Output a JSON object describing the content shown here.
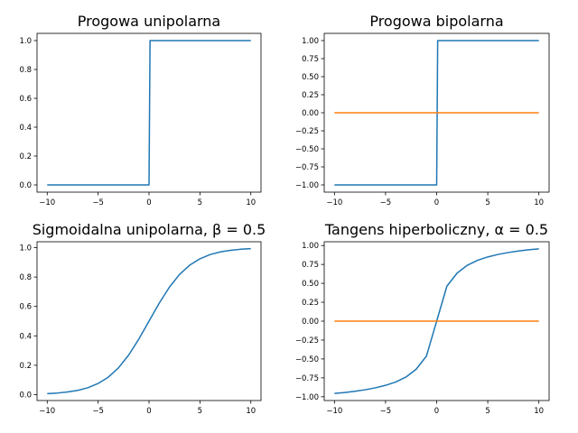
{
  "chart_data": [
    {
      "type": "line",
      "title": "Progowa unipolarna",
      "xlim": [
        -11,
        11
      ],
      "ylim": [
        -0.05,
        1.05
      ],
      "xticks": [
        -10,
        -5,
        0,
        5,
        10
      ],
      "xtick_labels": [
        "−10",
        "−5",
        "0",
        "5",
        "10"
      ],
      "yticks": [
        0.0,
        0.2,
        0.4,
        0.6,
        0.8,
        1.0
      ],
      "ytick_labels": [
        "0.0",
        "0.2",
        "0.4",
        "0.6",
        "0.8",
        "1.0"
      ],
      "series": [
        {
          "color": "#1f77b4",
          "x": [
            -10,
            0,
            0.1,
            10
          ],
          "y": [
            0,
            0,
            1,
            1
          ]
        }
      ]
    },
    {
      "type": "line",
      "title": "Progowa bipolarna",
      "xlim": [
        -11,
        11
      ],
      "ylim": [
        -1.1,
        1.1
      ],
      "xticks": [
        -10,
        -5,
        0,
        5,
        10
      ],
      "xtick_labels": [
        "−10",
        "−5",
        "0",
        "5",
        "10"
      ],
      "yticks": [
        -1.0,
        -0.75,
        -0.5,
        -0.25,
        0.0,
        0.25,
        0.5,
        0.75,
        1.0
      ],
      "ytick_labels": [
        "−1.00",
        "−0.75",
        "−0.50",
        "−0.25",
        "0.00",
        "0.25",
        "0.50",
        "0.75",
        "1.00"
      ],
      "series": [
        {
          "color": "#1f77b4",
          "x": [
            -10,
            0,
            0.1,
            10
          ],
          "y": [
            -1,
            -1,
            1,
            1
          ]
        },
        {
          "color": "#ff7f0e",
          "x": [
            -10,
            10
          ],
          "y": [
            0,
            0
          ]
        }
      ]
    },
    {
      "type": "line",
      "title": "Sigmoidalna unipolarna, β = 0.5",
      "xlim": [
        -11,
        11
      ],
      "ylim": [
        -0.04,
        1.04
      ],
      "xticks": [
        -10,
        -5,
        0,
        5,
        10
      ],
      "xtick_labels": [
        "−10",
        "−5",
        "0",
        "5",
        "10"
      ],
      "yticks": [
        0.0,
        0.2,
        0.4,
        0.6,
        0.8,
        1.0
      ],
      "ytick_labels": [
        "0.0",
        "0.2",
        "0.4",
        "0.6",
        "0.8",
        "1.0"
      ],
      "series": [
        {
          "color": "#1f77b4",
          "x": [
            -10,
            -9,
            -8,
            -7,
            -6,
            -5,
            -4,
            -3,
            -2,
            -1,
            0,
            1,
            2,
            3,
            4,
            5,
            6,
            7,
            8,
            9,
            10
          ],
          "y": [
            0.0067,
            0.011,
            0.018,
            0.029,
            0.047,
            0.076,
            0.119,
            0.182,
            0.269,
            0.378,
            0.5,
            0.622,
            0.731,
            0.818,
            0.881,
            0.924,
            0.953,
            0.971,
            0.982,
            0.989,
            0.9933
          ]
        }
      ]
    },
    {
      "type": "line",
      "title": "Tangens hiperboliczny, α = 0.5",
      "xlim": [
        -11,
        11
      ],
      "ylim": [
        -1.05,
        1.05
      ],
      "xticks": [
        -10,
        -5,
        0,
        5,
        10
      ],
      "xtick_labels": [
        "−10",
        "−5",
        "0",
        "5",
        "10"
      ],
      "yticks": [
        -1.0,
        -0.75,
        -0.5,
        -0.25,
        0.0,
        0.25,
        0.5,
        0.75,
        1.0
      ],
      "ytick_labels": [
        "−1.00",
        "−0.75",
        "−0.50",
        "−0.25",
        "0.00",
        "0.25",
        "0.50",
        "0.75",
        "1.00"
      ],
      "series": [
        {
          "color": "#1f77b4",
          "x": [
            -10,
            -9,
            -8,
            -7,
            -6,
            -5,
            -4,
            -3,
            -2,
            -1,
            0,
            1,
            2,
            3,
            4,
            5,
            6,
            7,
            8,
            9,
            10
          ],
          "y": [
            -0.9556,
            -0.9434,
            -0.9276,
            -0.9076,
            -0.8821,
            -0.8491,
            -0.8044,
            -0.7395,
            -0.6355,
            -0.4621,
            0,
            0.4621,
            0.6355,
            0.7395,
            0.8044,
            0.8491,
            0.8821,
            0.9076,
            0.9276,
            0.9434,
            0.9556
          ]
        },
        {
          "color": "#ff7f0e",
          "x": [
            -10,
            10
          ],
          "y": [
            0,
            0
          ]
        }
      ]
    }
  ]
}
